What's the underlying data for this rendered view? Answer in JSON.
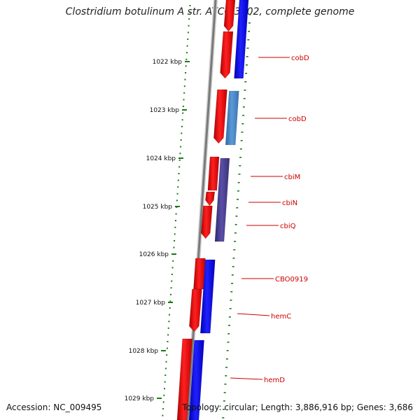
{
  "title": "Clostridium botulinum A str. ATCC 3502, complete genome",
  "accession": "Accession: NC_009495",
  "topology": "Topology: circular; Length: 3,886,916 bp; Genes: 3,686",
  "scale_ticks": [
    "1022 kbp",
    "1023 kbp",
    "1024 kbp",
    "1025 kbp",
    "1026 kbp",
    "1027 kbp",
    "1028 kbp",
    "1029 kbp"
  ],
  "gene_labels": [
    "cobD",
    "cobD",
    "cbiM",
    "cbiN",
    "cbiQ",
    "CBO0919",
    "hemC",
    "hemD"
  ],
  "colors": {
    "cds_track": "#ff0000",
    "gene_track_blue": "#0000ff",
    "gene_track_steelblue": "#4a8ccc",
    "gene_track_purple": "#4b3f8f",
    "backbone": "#808080",
    "gc_dots": "#1a7a1a",
    "labels": "#cc0000"
  }
}
